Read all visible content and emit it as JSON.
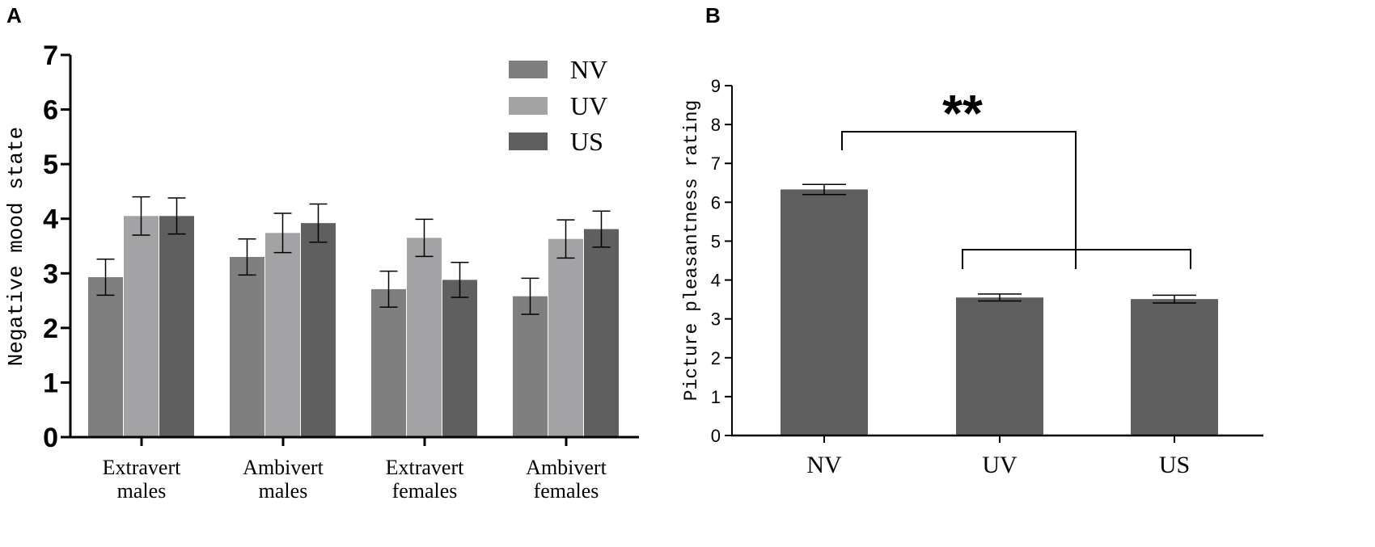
{
  "chart_data": [
    {
      "panel": "A",
      "type": "bar",
      "title": "",
      "xlabel": "",
      "ylabel": "Negative mood state",
      "ylim": [
        0,
        7
      ],
      "yticks": [
        "0",
        "1",
        "2",
        "3",
        "4",
        "5",
        "6",
        "7"
      ],
      "categories": [
        [
          "Extravert",
          "males"
        ],
        [
          "Ambivert",
          "males"
        ],
        [
          "Extravert",
          "females"
        ],
        [
          "Ambivert",
          "females"
        ]
      ],
      "series": [
        {
          "name": "NV",
          "color": "#7f7f7f",
          "values": [
            2.93,
            3.3,
            2.71,
            2.58
          ],
          "errors": [
            0.33,
            0.33,
            0.33,
            0.33
          ]
        },
        {
          "name": "UV",
          "color": "#a3a3a5",
          "values": [
            4.05,
            3.74,
            3.65,
            3.63
          ],
          "errors": [
            0.35,
            0.36,
            0.34,
            0.35
          ]
        },
        {
          "name": "US",
          "color": "#5f5f5f",
          "values": [
            4.05,
            3.92,
            2.88,
            3.81
          ],
          "errors": [
            0.33,
            0.35,
            0.32,
            0.33
          ]
        }
      ],
      "legend_position": "top-right"
    },
    {
      "panel": "B",
      "type": "bar",
      "title": "",
      "xlabel": "",
      "ylabel": "Picture pleasantness rating",
      "ylim": [
        0,
        9
      ],
      "yticks": [
        "0",
        "1",
        "2",
        "3",
        "4",
        "5",
        "6",
        "7",
        "8",
        "9"
      ],
      "categories": [
        "NV",
        "UV",
        "US"
      ],
      "values": [
        6.33,
        3.55,
        3.51
      ],
      "errors": [
        0.13,
        0.09,
        0.1
      ],
      "color": "#5f5f5f",
      "annotation": {
        "text": "**",
        "compare": "NV vs UV+US"
      }
    }
  ],
  "labels": {
    "panel_a": "A",
    "panel_b": "B"
  }
}
